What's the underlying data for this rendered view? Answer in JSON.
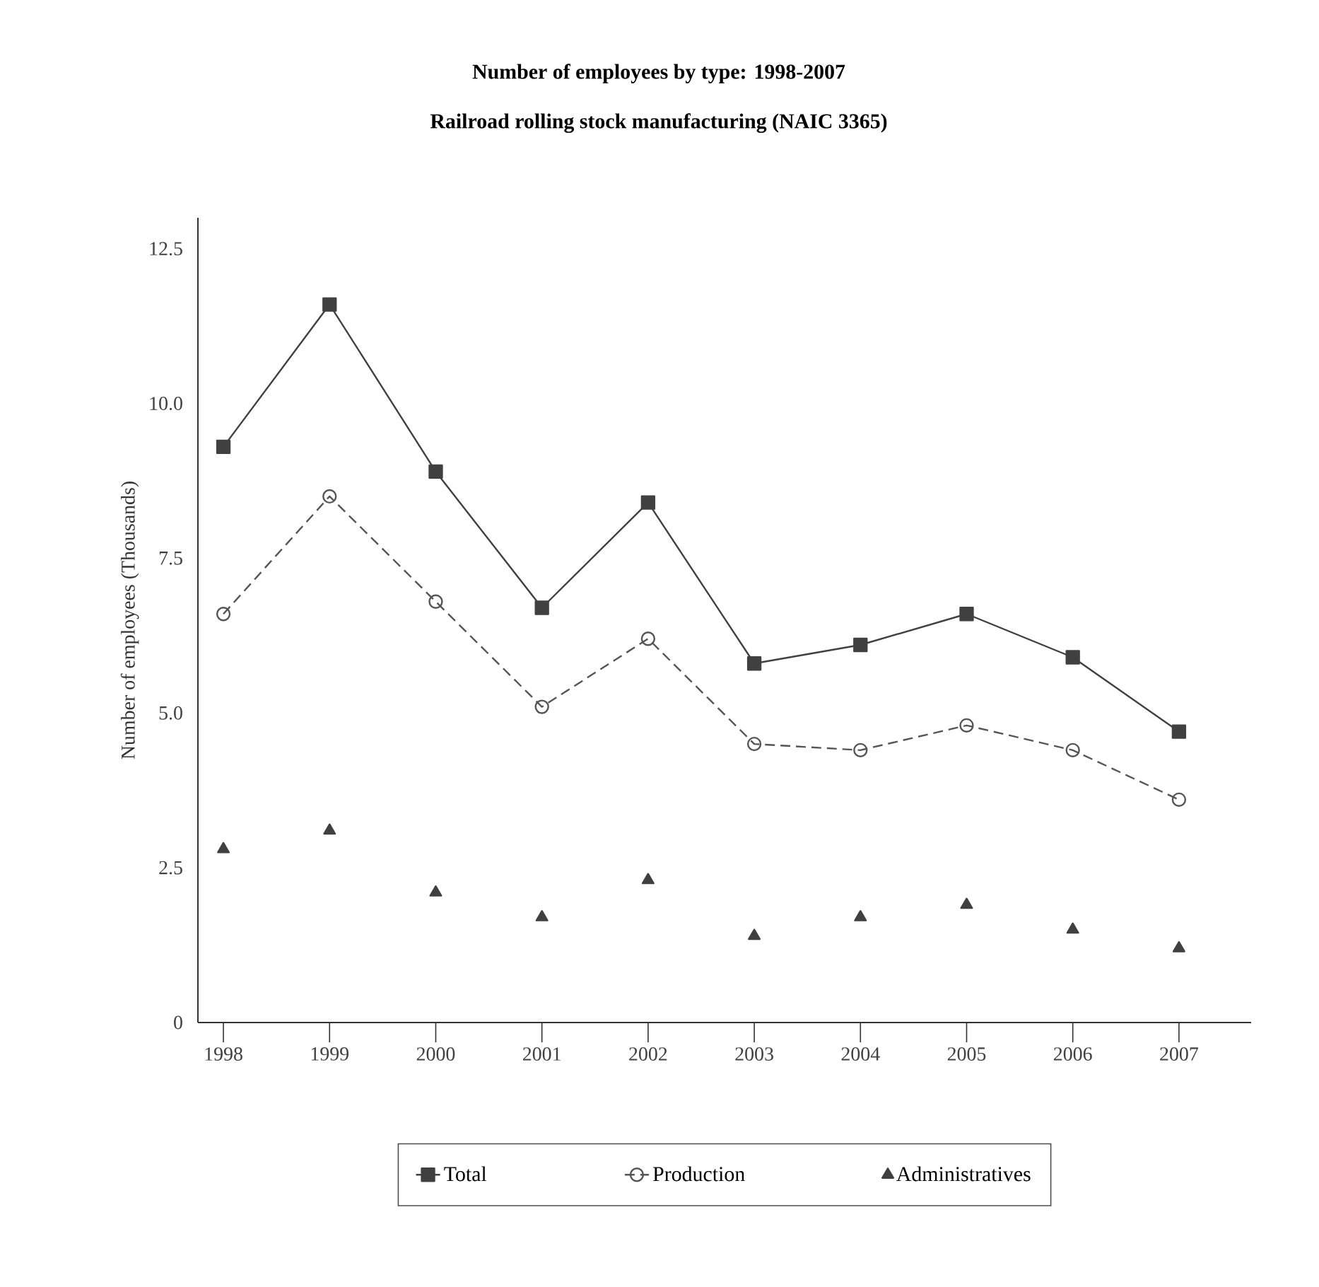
{
  "chart_data": {
    "type": "line",
    "title": "Number of employees by type: 1998-2007",
    "subtitle": "Railroad rolling stock manufacturing (NAIC 3365)",
    "ylabel": "Number of employees (Thousands)",
    "categories": [
      "1998",
      "1999",
      "2000",
      "2001",
      "2002",
      "2003",
      "2004",
      "2005",
      "2006",
      "2007"
    ],
    "ylim": [
      0,
      13
    ],
    "yticks": [
      0,
      {
        "value": 2.5,
        "label": "2.5"
      },
      {
        "value": 5,
        "label": "5.0"
      },
      {
        "value": 7.5,
        "label": "7.5"
      },
      {
        "value": 10,
        "label": "10.0"
      },
      {
        "value": 12.5,
        "label": "12.5"
      }
    ],
    "legend": "bottom",
    "series": [
      {
        "name": "Total",
        "color": "#404040",
        "marker": "square",
        "line_style": "solid",
        "values": [
          9.3,
          11.6,
          8.9,
          6.7,
          8.4,
          5.8,
          6.1,
          6.6,
          5.9,
          4.7
        ]
      },
      {
        "name": "Production",
        "color": "#555555",
        "marker": "circle",
        "line_style": "dashed",
        "values": [
          6.6,
          8.5,
          6.8,
          5.1,
          6.2,
          4.5,
          4.4,
          4.8,
          4.4,
          3.6
        ]
      },
      {
        "name": "Administratives",
        "type": "scatter",
        "color": "#404040",
        "marker": "triangle",
        "values": [
          2.8,
          3.1,
          2.1,
          1.7,
          2.3,
          1.4,
          1.7,
          1.9,
          1.5,
          1.2
        ]
      }
    ]
  }
}
